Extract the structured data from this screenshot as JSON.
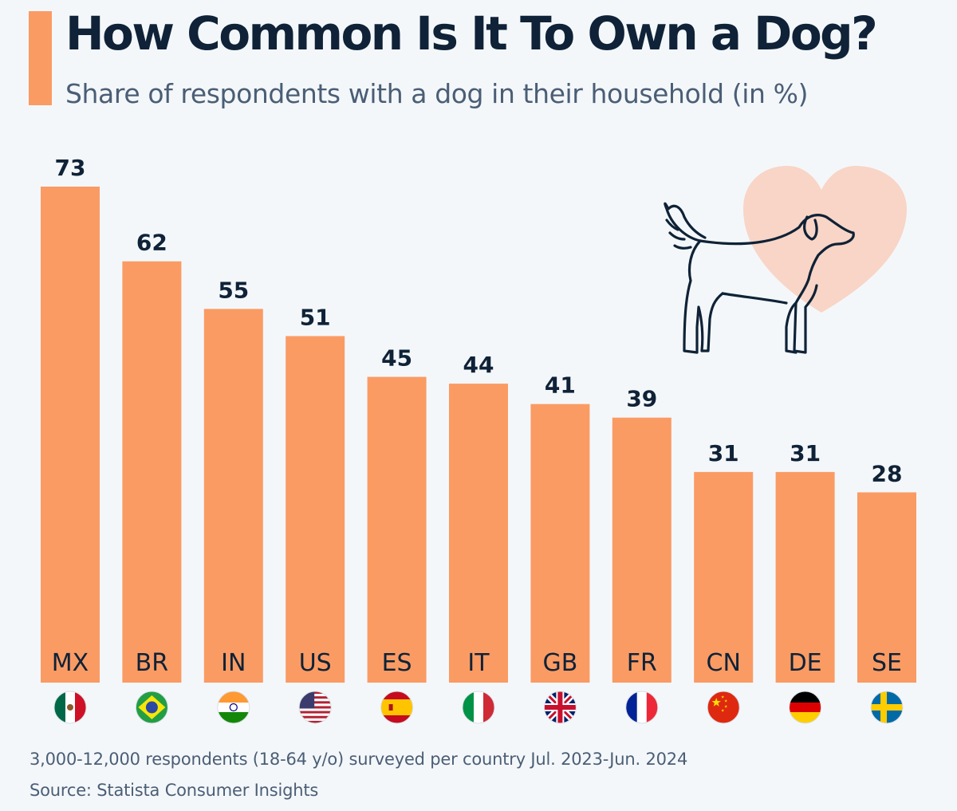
{
  "header": {
    "title": "How Common Is It To Own a Dog?",
    "subtitle": "Share of respondents with a dog in their household (in %)"
  },
  "chart_data": {
    "type": "bar",
    "categories": [
      "MX",
      "BR",
      "IN",
      "US",
      "ES",
      "IT",
      "GB",
      "FR",
      "CN",
      "DE",
      "SE"
    ],
    "values": [
      73,
      62,
      55,
      51,
      45,
      44,
      41,
      39,
      31,
      31,
      28
    ],
    "title": "How Common Is It To Own a Dog?",
    "subtitle": "Share of respondents with a dog in their household (in %)",
    "xlabel": "",
    "ylabel": "",
    "ylim": [
      0,
      73
    ],
    "grid": false,
    "legend": "none",
    "bar_color": "#fa9b64",
    "label_color": "#0f2237"
  },
  "colors": {
    "bar": "#fa9b64",
    "heart": "#f8d5c6",
    "text_dark": "#0f2237",
    "text_muted": "#4a5e75"
  },
  "illustration": {
    "dog": "dog-outline-icon",
    "heart": "heart-icon"
  },
  "flags": [
    "mexico-flag-icon",
    "brazil-flag-icon",
    "india-flag-icon",
    "usa-flag-icon",
    "spain-flag-icon",
    "italy-flag-icon",
    "uk-flag-icon",
    "france-flag-icon",
    "china-flag-icon",
    "germany-flag-icon",
    "sweden-flag-icon"
  ],
  "footer": {
    "note": "3,000-12,000 respondents (18-64 y/o) surveyed per country Jul. 2023-Jun. 2024",
    "source": "Source: Statista Consumer Insights"
  }
}
